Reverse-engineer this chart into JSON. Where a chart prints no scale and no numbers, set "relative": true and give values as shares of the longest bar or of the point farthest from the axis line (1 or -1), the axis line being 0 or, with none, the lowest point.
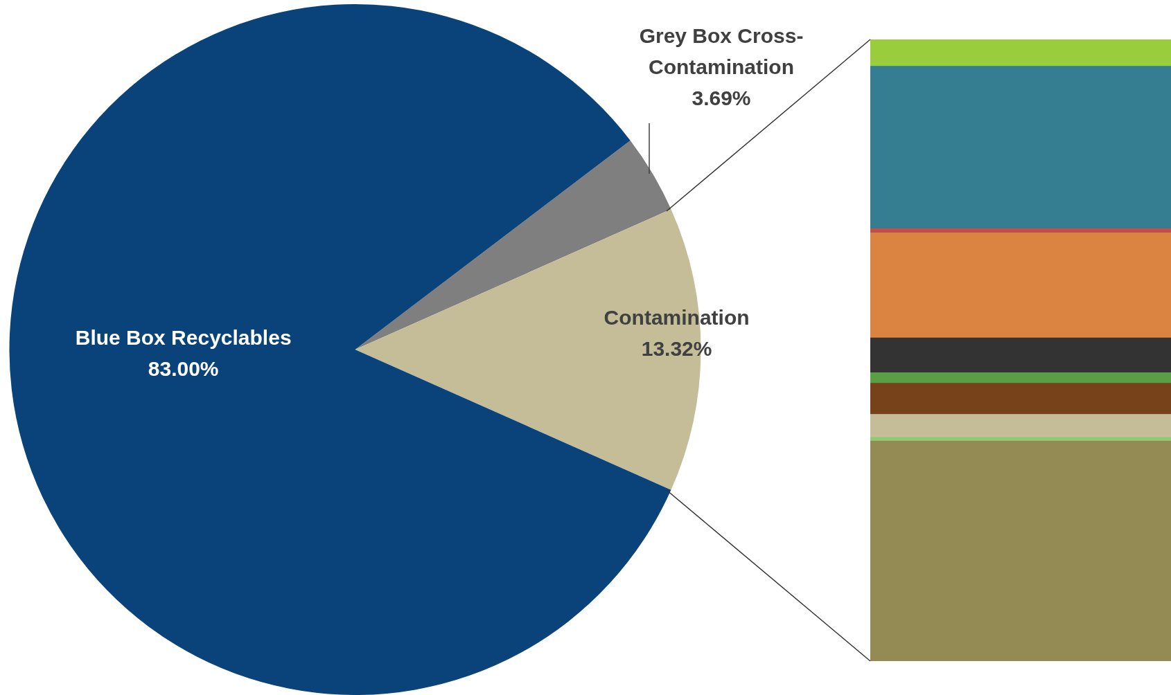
{
  "chart_data": [
    {
      "type": "pie",
      "categories": [
        "Grey Box Cross-Contamination",
        "Contamination",
        "Blue Box Recyclables"
      ],
      "values": [
        3.69,
        13.32,
        83.0
      ],
      "colors": [
        "#7f7f7f",
        "#c4bd97",
        "#0a4379"
      ],
      "value_labels": [
        "3.69%",
        "13.32%",
        "83.00%"
      ],
      "legend": false
    },
    {
      "type": "bar",
      "stacked": true,
      "relative": true,
      "categories": [
        null
      ],
      "legend": false,
      "series": [
        {
          "color": "#948a54",
          "values": [
            0.354
          ]
        },
        {
          "color": "#8ecb72",
          "values": [
            0.006
          ]
        },
        {
          "color": "#c4bd97",
          "values": [
            0.037
          ]
        },
        {
          "color": "#77411a",
          "values": [
            0.05
          ]
        },
        {
          "color": "#5a9e45",
          "values": [
            0.017
          ]
        },
        {
          "color": "#333333",
          "values": [
            0.056
          ]
        },
        {
          "color": "#db8340",
          "values": [
            0.169
          ]
        },
        {
          "color": "#c0504d",
          "values": [
            0.007
          ]
        },
        {
          "color": "#357d91",
          "values": [
            0.261
          ]
        },
        {
          "color": "#9acd3c",
          "values": [
            0.043
          ]
        }
      ]
    }
  ]
}
